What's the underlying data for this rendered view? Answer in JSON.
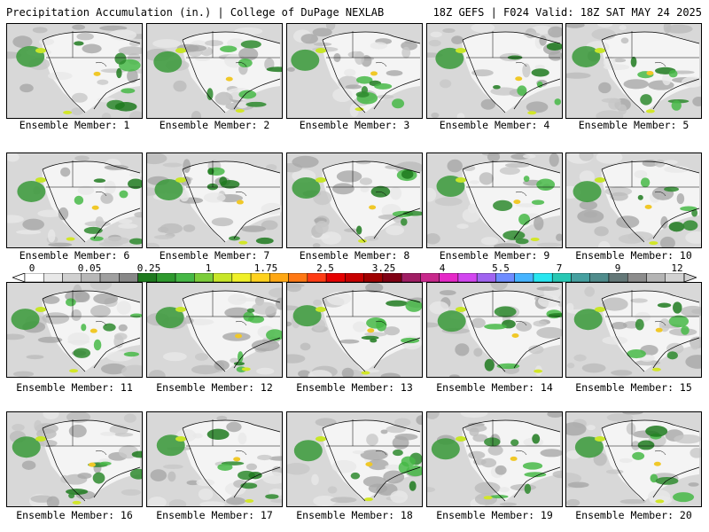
{
  "header": {
    "title_left": "Precipitation Accumulation (in.) | College of DuPage NEXLAB",
    "title_right": "18Z GEFS | F024 Valid: 18Z SAT MAY 24 2025"
  },
  "members": [
    {
      "label": "Ensemble Member: 1"
    },
    {
      "label": "Ensemble Member: 2"
    },
    {
      "label": "Ensemble Member: 3"
    },
    {
      "label": "Ensemble Member: 4"
    },
    {
      "label": "Ensemble Member: 5"
    },
    {
      "label": "Ensemble Member: 6"
    },
    {
      "label": "Ensemble Member: 7"
    },
    {
      "label": "Ensemble Member: 8"
    },
    {
      "label": "Ensemble Member: 9"
    },
    {
      "label": "Ensemble Member: 10"
    },
    {
      "label": "Ensemble Member: 11"
    },
    {
      "label": "Ensemble Member: 12"
    },
    {
      "label": "Ensemble Member: 13"
    },
    {
      "label": "Ensemble Member: 14"
    },
    {
      "label": "Ensemble Member: 15"
    },
    {
      "label": "Ensemble Member: 16"
    },
    {
      "label": "Ensemble Member: 17"
    },
    {
      "label": "Ensemble Member: 18"
    },
    {
      "label": "Ensemble Member: 19"
    },
    {
      "label": "Ensemble Member: 20"
    }
  ],
  "colorbar": {
    "labels": [
      "0",
      "0.05",
      "0.25",
      "1",
      "1.75",
      "2.5",
      "3.25",
      "4",
      "5.5",
      "7",
      "9",
      "12"
    ],
    "colors": [
      "#ffffff",
      "#e8e8e8",
      "#d0d0d0",
      "#b8b8b8",
      "#a0a0a0",
      "#888888",
      "#1e7a1e",
      "#2e9a2e",
      "#46b846",
      "#7ccd3a",
      "#c8e628",
      "#f0f028",
      "#ffd21e",
      "#ffa814",
      "#ff7814",
      "#ff3c14",
      "#e60000",
      "#c80000",
      "#a00000",
      "#800014",
      "#a01e64",
      "#c8288c",
      "#e628c8",
      "#d246f0",
      "#a064f0",
      "#6e8cff",
      "#46b4ff",
      "#28e6f0",
      "#28c8b4",
      "#46a0a0",
      "#508c8c",
      "#647878",
      "#8c8c8c",
      "#b4b4b4",
      "#d2d2d2"
    ]
  }
}
